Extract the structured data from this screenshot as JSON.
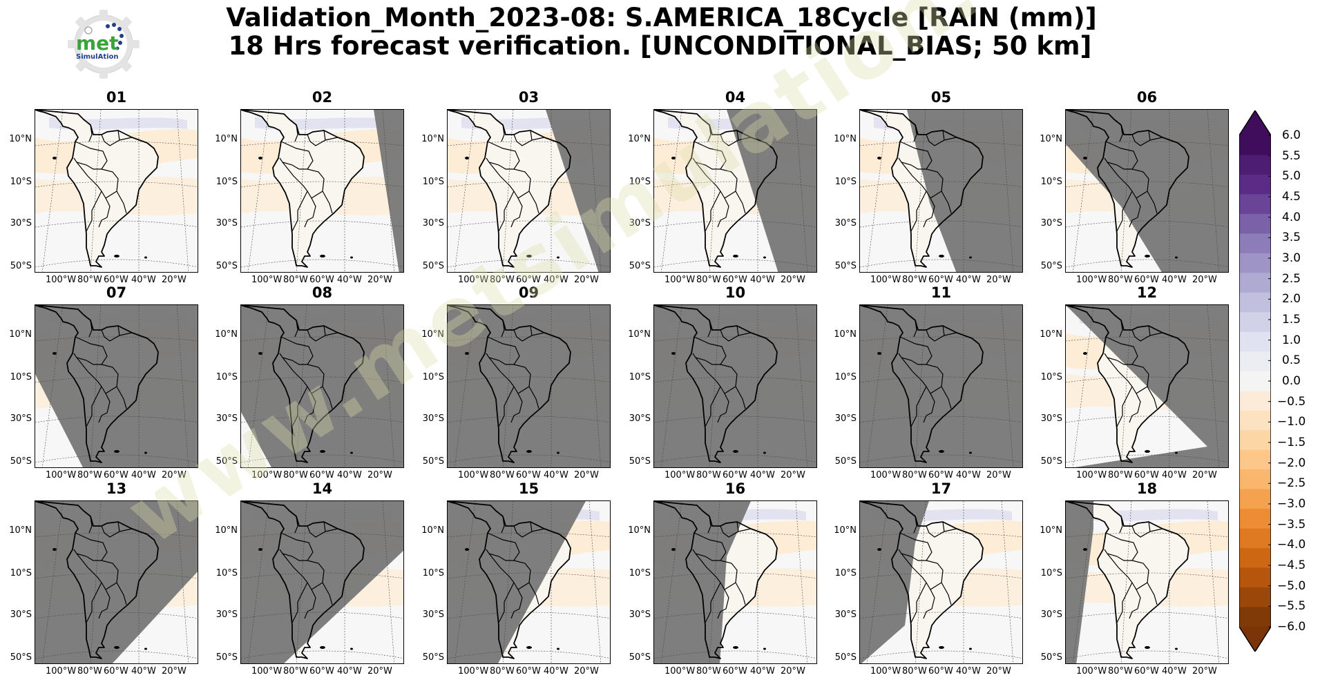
{
  "header": {
    "title_line1": "Validation_Month_2023-08: S.AMERICA_18Cycle [RAIN (mm)]",
    "title_line2": "18 Hrs forecast verification. [UNCONDITIONAL_BIAS; 50 km]"
  },
  "logo": {
    "text": "met",
    "subtext": "SimulAtion",
    "brand_green": "#3aa33a",
    "brand_blue": "#1f3f8a"
  },
  "watermark": "www.metsimulation.com",
  "panels": [
    {
      "label": "01"
    },
    {
      "label": "02"
    },
    {
      "label": "03"
    },
    {
      "label": "04"
    },
    {
      "label": "05"
    },
    {
      "label": "06"
    },
    {
      "label": "07"
    },
    {
      "label": "08"
    },
    {
      "label": "09"
    },
    {
      "label": "10"
    },
    {
      "label": "11"
    },
    {
      "label": "12"
    },
    {
      "label": "13"
    },
    {
      "label": "14"
    },
    {
      "label": "15"
    },
    {
      "label": "16"
    },
    {
      "label": "17"
    },
    {
      "label": "18"
    }
  ],
  "axes": {
    "lat_labels": [
      "10°N",
      "10°S",
      "30°S",
      "50°S"
    ],
    "lon_labels": [
      "100°W",
      "80°W",
      "60°W",
      "40°W",
      "20°W"
    ]
  },
  "colorbar": {
    "min": -6.0,
    "max": 6.0,
    "step": 0.5,
    "extend": "both",
    "tick_labels": [
      "6.0",
      "5.5",
      "5.0",
      "4.5",
      "4.0",
      "3.5",
      "3.0",
      "2.5",
      "2.0",
      "1.5",
      "1.0",
      "0.5",
      "0.0",
      "−0.5",
      "−1.0",
      "−1.5",
      "−2.0",
      "−2.5",
      "−3.0",
      "−3.5",
      "−4.0",
      "−4.5",
      "−5.0",
      "−5.5",
      "−6.0"
    ],
    "colors_top_to_bottom": [
      "#3f0d5c",
      "#4c1d70",
      "#5b2c86",
      "#6a4597",
      "#7b61a7",
      "#8c7db8",
      "#9e94c6",
      "#afaad2",
      "#c0bfde",
      "#d1d2e8",
      "#e1e2f0",
      "#ececf3",
      "#f4f4f4",
      "#fbebd8",
      "#fde2c2",
      "#fdd6a5",
      "#fcc789",
      "#f9b66c",
      "#f5a24f",
      "#ec8c34",
      "#e07a22",
      "#cd6713",
      "#b5560c",
      "#9a4709",
      "#803a07"
    ],
    "over_color": "#3f0d5c",
    "under_color": "#7a3407"
  },
  "colors": {
    "masked_area": "#777777",
    "ocean_bias": "#f7f7f7",
    "dry_bias": "#fdebd3",
    "wet_bias": "#dcdcee"
  }
}
